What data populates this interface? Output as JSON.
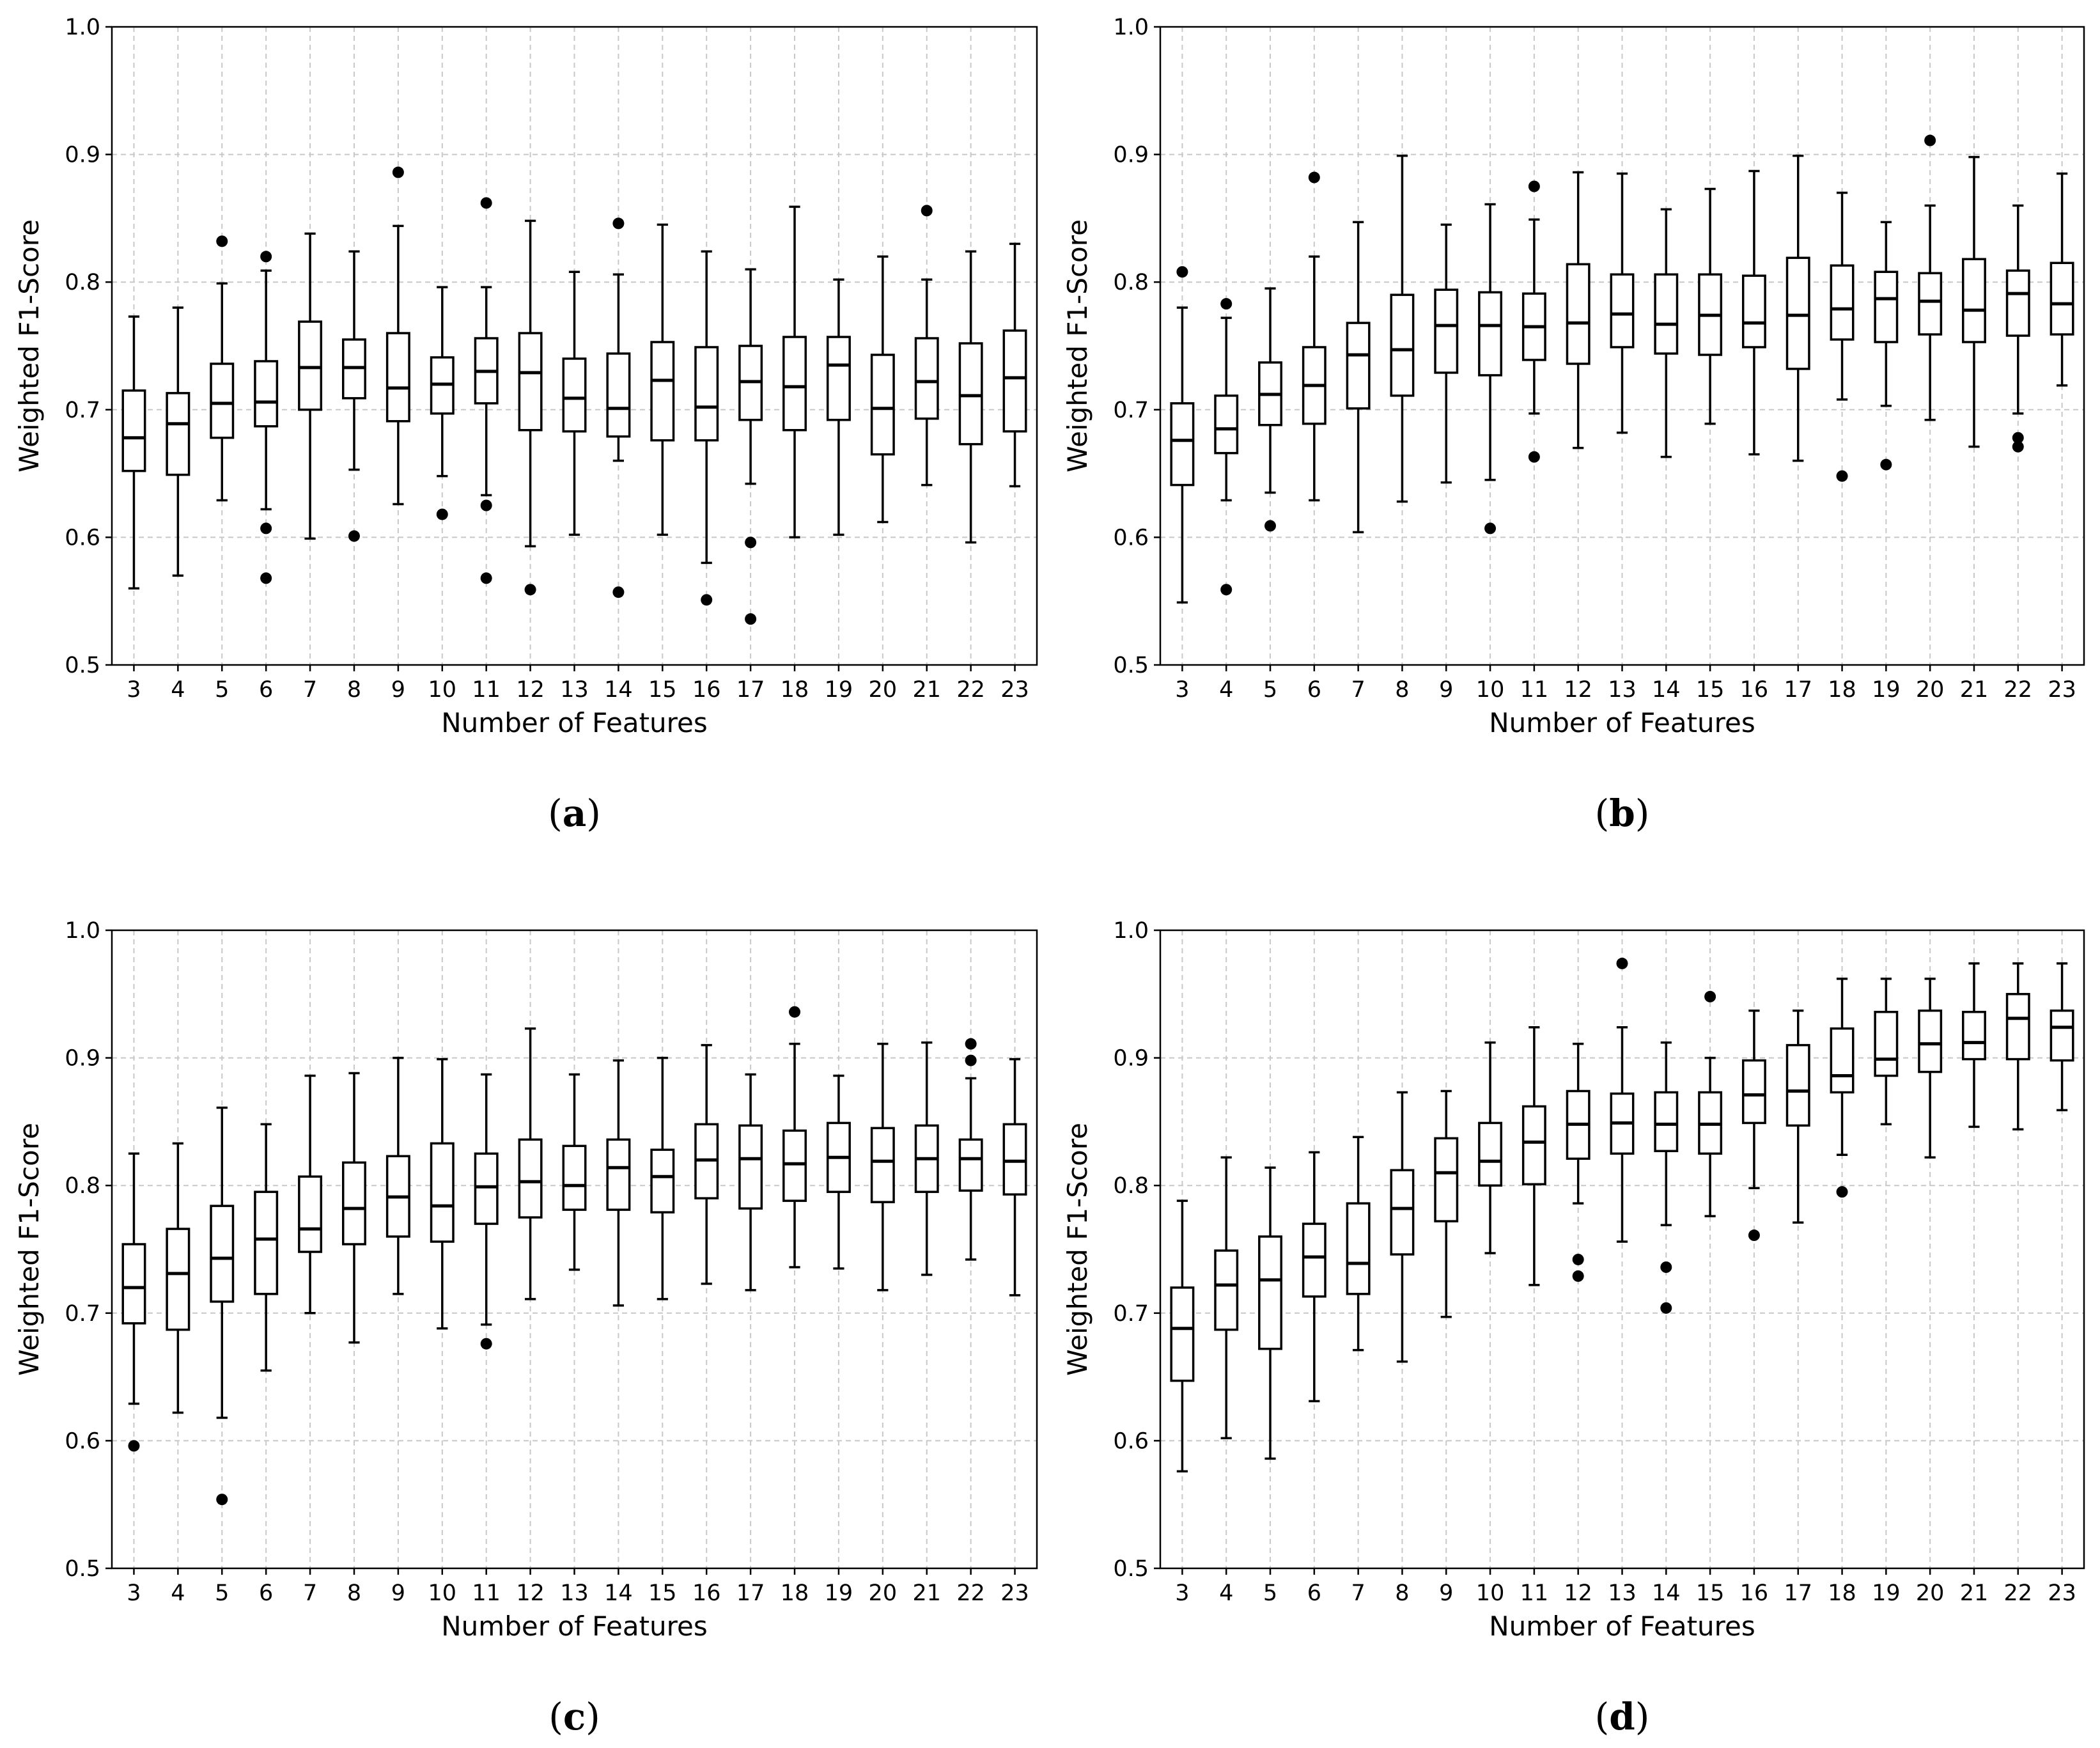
{
  "chart_data": [
    {
      "type": "box",
      "caption": "(a)",
      "xlabel": "Number of Features",
      "ylabel": "Weighted F1-Score",
      "ylim": [
        0.5,
        1.0
      ],
      "yticks": [
        "0.5",
        "0.6",
        "0.7",
        "0.8",
        "0.9",
        "1.0"
      ],
      "grid": true,
      "categories": [
        3,
        4,
        5,
        6,
        7,
        8,
        9,
        10,
        11,
        12,
        13,
        14,
        15,
        16,
        17,
        18,
        19,
        20,
        21,
        22,
        23
      ],
      "boxes": [
        {
          "lo": 0.56,
          "q1": 0.652,
          "med": 0.678,
          "q3": 0.715,
          "hi": 0.773,
          "out": []
        },
        {
          "lo": 0.57,
          "q1": 0.649,
          "med": 0.689,
          "q3": 0.713,
          "hi": 0.78,
          "out": []
        },
        {
          "lo": 0.629,
          "q1": 0.678,
          "med": 0.705,
          "q3": 0.736,
          "hi": 0.799,
          "out": [
            0.832
          ]
        },
        {
          "lo": 0.622,
          "q1": 0.687,
          "med": 0.706,
          "q3": 0.738,
          "hi": 0.809,
          "out": [
            0.82,
            0.607,
            0.568
          ]
        },
        {
          "lo": 0.599,
          "q1": 0.7,
          "med": 0.733,
          "q3": 0.769,
          "hi": 0.838,
          "out": []
        },
        {
          "lo": 0.653,
          "q1": 0.709,
          "med": 0.733,
          "q3": 0.755,
          "hi": 0.824,
          "out": [
            0.601
          ]
        },
        {
          "lo": 0.626,
          "q1": 0.691,
          "med": 0.717,
          "q3": 0.76,
          "hi": 0.844,
          "out": [
            0.886
          ]
        },
        {
          "lo": 0.648,
          "q1": 0.697,
          "med": 0.72,
          "q3": 0.741,
          "hi": 0.796,
          "out": [
            0.618
          ]
        },
        {
          "lo": 0.633,
          "q1": 0.705,
          "med": 0.73,
          "q3": 0.756,
          "hi": 0.796,
          "out": [
            0.862,
            0.625,
            0.568
          ]
        },
        {
          "lo": 0.593,
          "q1": 0.684,
          "med": 0.729,
          "q3": 0.76,
          "hi": 0.848,
          "out": [
            0.559
          ]
        },
        {
          "lo": 0.602,
          "q1": 0.683,
          "med": 0.709,
          "q3": 0.74,
          "hi": 0.808,
          "out": []
        },
        {
          "lo": 0.66,
          "q1": 0.679,
          "med": 0.701,
          "q3": 0.744,
          "hi": 0.806,
          "out": [
            0.846,
            0.557
          ]
        },
        {
          "lo": 0.602,
          "q1": 0.676,
          "med": 0.723,
          "q3": 0.753,
          "hi": 0.845,
          "out": []
        },
        {
          "lo": 0.58,
          "q1": 0.676,
          "med": 0.702,
          "q3": 0.749,
          "hi": 0.824,
          "out": [
            0.551
          ]
        },
        {
          "lo": 0.642,
          "q1": 0.692,
          "med": 0.722,
          "q3": 0.75,
          "hi": 0.81,
          "out": [
            0.596,
            0.536
          ]
        },
        {
          "lo": 0.6,
          "q1": 0.684,
          "med": 0.718,
          "q3": 0.757,
          "hi": 0.859,
          "out": []
        },
        {
          "lo": 0.602,
          "q1": 0.692,
          "med": 0.735,
          "q3": 0.757,
          "hi": 0.802,
          "out": []
        },
        {
          "lo": 0.612,
          "q1": 0.665,
          "med": 0.701,
          "q3": 0.743,
          "hi": 0.82,
          "out": []
        },
        {
          "lo": 0.641,
          "q1": 0.693,
          "med": 0.722,
          "q3": 0.756,
          "hi": 0.802,
          "out": [
            0.856
          ]
        },
        {
          "lo": 0.596,
          "q1": 0.673,
          "med": 0.711,
          "q3": 0.752,
          "hi": 0.824,
          "out": []
        },
        {
          "lo": 0.64,
          "q1": 0.683,
          "med": 0.725,
          "q3": 0.762,
          "hi": 0.83,
          "out": []
        }
      ]
    },
    {
      "type": "box",
      "caption": "(b)",
      "xlabel": "Number of Features",
      "ylabel": "Weighted F1-Score",
      "ylim": [
        0.5,
        1.0
      ],
      "yticks": [
        "0.5",
        "0.6",
        "0.7",
        "0.8",
        "0.9",
        "1.0"
      ],
      "grid": true,
      "categories": [
        3,
        4,
        5,
        6,
        7,
        8,
        9,
        10,
        11,
        12,
        13,
        14,
        15,
        16,
        17,
        18,
        19,
        20,
        21,
        22,
        23
      ],
      "boxes": [
        {
          "lo": 0.549,
          "q1": 0.641,
          "med": 0.676,
          "q3": 0.705,
          "hi": 0.78,
          "out": [
            0.808
          ]
        },
        {
          "lo": 0.629,
          "q1": 0.666,
          "med": 0.685,
          "q3": 0.711,
          "hi": 0.772,
          "out": [
            0.783,
            0.559
          ]
        },
        {
          "lo": 0.635,
          "q1": 0.688,
          "med": 0.712,
          "q3": 0.737,
          "hi": 0.795,
          "out": [
            0.609
          ]
        },
        {
          "lo": 0.629,
          "q1": 0.689,
          "med": 0.719,
          "q3": 0.749,
          "hi": 0.82,
          "out": [
            0.882
          ]
        },
        {
          "lo": 0.604,
          "q1": 0.701,
          "med": 0.743,
          "q3": 0.768,
          "hi": 0.847,
          "out": []
        },
        {
          "lo": 0.628,
          "q1": 0.711,
          "med": 0.747,
          "q3": 0.79,
          "hi": 0.899,
          "out": []
        },
        {
          "lo": 0.643,
          "q1": 0.729,
          "med": 0.766,
          "q3": 0.794,
          "hi": 0.845,
          "out": []
        },
        {
          "lo": 0.645,
          "q1": 0.727,
          "med": 0.766,
          "q3": 0.792,
          "hi": 0.861,
          "out": [
            0.607
          ]
        },
        {
          "lo": 0.697,
          "q1": 0.739,
          "med": 0.765,
          "q3": 0.791,
          "hi": 0.849,
          "out": [
            0.875,
            0.663
          ]
        },
        {
          "lo": 0.67,
          "q1": 0.736,
          "med": 0.768,
          "q3": 0.814,
          "hi": 0.886,
          "out": []
        },
        {
          "lo": 0.682,
          "q1": 0.749,
          "med": 0.775,
          "q3": 0.806,
          "hi": 0.885,
          "out": []
        },
        {
          "lo": 0.663,
          "q1": 0.744,
          "med": 0.767,
          "q3": 0.806,
          "hi": 0.857,
          "out": []
        },
        {
          "lo": 0.689,
          "q1": 0.743,
          "med": 0.774,
          "q3": 0.806,
          "hi": 0.873,
          "out": []
        },
        {
          "lo": 0.665,
          "q1": 0.749,
          "med": 0.768,
          "q3": 0.805,
          "hi": 0.887,
          "out": []
        },
        {
          "lo": 0.66,
          "q1": 0.732,
          "med": 0.774,
          "q3": 0.819,
          "hi": 0.899,
          "out": []
        },
        {
          "lo": 0.708,
          "q1": 0.755,
          "med": 0.779,
          "q3": 0.813,
          "hi": 0.87,
          "out": [
            0.648
          ]
        },
        {
          "lo": 0.703,
          "q1": 0.753,
          "med": 0.787,
          "q3": 0.808,
          "hi": 0.847,
          "out": [
            0.657
          ]
        },
        {
          "lo": 0.692,
          "q1": 0.759,
          "med": 0.785,
          "q3": 0.807,
          "hi": 0.86,
          "out": [
            0.911
          ]
        },
        {
          "lo": 0.671,
          "q1": 0.753,
          "med": 0.778,
          "q3": 0.818,
          "hi": 0.898,
          "out": []
        },
        {
          "lo": 0.697,
          "q1": 0.758,
          "med": 0.791,
          "q3": 0.809,
          "hi": 0.86,
          "out": [
            0.678,
            0.671
          ]
        },
        {
          "lo": 0.719,
          "q1": 0.759,
          "med": 0.783,
          "q3": 0.815,
          "hi": 0.885,
          "out": []
        }
      ]
    },
    {
      "type": "box",
      "caption": "(c)",
      "xlabel": "Number of Features",
      "ylabel": "Weighted F1-Score",
      "ylim": [
        0.5,
        1.0
      ],
      "yticks": [
        "0.5",
        "0.6",
        "0.7",
        "0.8",
        "0.9",
        "1.0"
      ],
      "grid": true,
      "categories": [
        3,
        4,
        5,
        6,
        7,
        8,
        9,
        10,
        11,
        12,
        13,
        14,
        15,
        16,
        17,
        18,
        19,
        20,
        21,
        22,
        23
      ],
      "boxes": [
        {
          "lo": 0.629,
          "q1": 0.692,
          "med": 0.72,
          "q3": 0.754,
          "hi": 0.825,
          "out": [
            0.596
          ]
        },
        {
          "lo": 0.622,
          "q1": 0.687,
          "med": 0.731,
          "q3": 0.766,
          "hi": 0.833,
          "out": []
        },
        {
          "lo": 0.618,
          "q1": 0.709,
          "med": 0.743,
          "q3": 0.784,
          "hi": 0.861,
          "out": [
            0.554
          ]
        },
        {
          "lo": 0.655,
          "q1": 0.715,
          "med": 0.758,
          "q3": 0.795,
          "hi": 0.848,
          "out": []
        },
        {
          "lo": 0.7,
          "q1": 0.748,
          "med": 0.766,
          "q3": 0.807,
          "hi": 0.886,
          "out": []
        },
        {
          "lo": 0.677,
          "q1": 0.754,
          "med": 0.782,
          "q3": 0.818,
          "hi": 0.888,
          "out": []
        },
        {
          "lo": 0.715,
          "q1": 0.76,
          "med": 0.791,
          "q3": 0.823,
          "hi": 0.9,
          "out": []
        },
        {
          "lo": 0.688,
          "q1": 0.756,
          "med": 0.784,
          "q3": 0.833,
          "hi": 0.899,
          "out": []
        },
        {
          "lo": 0.691,
          "q1": 0.77,
          "med": 0.799,
          "q3": 0.825,
          "hi": 0.887,
          "out": [
            0.676
          ]
        },
        {
          "lo": 0.711,
          "q1": 0.775,
          "med": 0.803,
          "q3": 0.836,
          "hi": 0.923,
          "out": []
        },
        {
          "lo": 0.734,
          "q1": 0.781,
          "med": 0.8,
          "q3": 0.831,
          "hi": 0.887,
          "out": []
        },
        {
          "lo": 0.706,
          "q1": 0.781,
          "med": 0.814,
          "q3": 0.836,
          "hi": 0.898,
          "out": []
        },
        {
          "lo": 0.711,
          "q1": 0.779,
          "med": 0.807,
          "q3": 0.828,
          "hi": 0.9,
          "out": []
        },
        {
          "lo": 0.723,
          "q1": 0.79,
          "med": 0.82,
          "q3": 0.848,
          "hi": 0.91,
          "out": []
        },
        {
          "lo": 0.718,
          "q1": 0.782,
          "med": 0.821,
          "q3": 0.847,
          "hi": 0.887,
          "out": []
        },
        {
          "lo": 0.736,
          "q1": 0.788,
          "med": 0.817,
          "q3": 0.843,
          "hi": 0.911,
          "out": [
            0.936
          ]
        },
        {
          "lo": 0.735,
          "q1": 0.795,
          "med": 0.822,
          "q3": 0.849,
          "hi": 0.886,
          "out": []
        },
        {
          "lo": 0.718,
          "q1": 0.787,
          "med": 0.819,
          "q3": 0.845,
          "hi": 0.911,
          "out": []
        },
        {
          "lo": 0.73,
          "q1": 0.795,
          "med": 0.821,
          "q3": 0.847,
          "hi": 0.912,
          "out": []
        },
        {
          "lo": 0.742,
          "q1": 0.796,
          "med": 0.821,
          "q3": 0.836,
          "hi": 0.884,
          "out": [
            0.911,
            0.898
          ]
        },
        {
          "lo": 0.714,
          "q1": 0.793,
          "med": 0.819,
          "q3": 0.848,
          "hi": 0.899,
          "out": []
        }
      ]
    },
    {
      "type": "box",
      "caption": "(d)",
      "xlabel": "Number of Features",
      "ylabel": "Weighted F1-Score",
      "ylim": [
        0.5,
        1.0
      ],
      "yticks": [
        "0.5",
        "0.6",
        "0.7",
        "0.8",
        "0.9",
        "1.0"
      ],
      "grid": true,
      "categories": [
        3,
        4,
        5,
        6,
        7,
        8,
        9,
        10,
        11,
        12,
        13,
        14,
        15,
        16,
        17,
        18,
        19,
        20,
        21,
        22,
        23
      ],
      "boxes": [
        {
          "lo": 0.576,
          "q1": 0.647,
          "med": 0.688,
          "q3": 0.72,
          "hi": 0.788,
          "out": []
        },
        {
          "lo": 0.602,
          "q1": 0.687,
          "med": 0.722,
          "q3": 0.749,
          "hi": 0.822,
          "out": []
        },
        {
          "lo": 0.586,
          "q1": 0.672,
          "med": 0.726,
          "q3": 0.76,
          "hi": 0.814,
          "out": []
        },
        {
          "lo": 0.631,
          "q1": 0.713,
          "med": 0.744,
          "q3": 0.77,
          "hi": 0.826,
          "out": []
        },
        {
          "lo": 0.671,
          "q1": 0.715,
          "med": 0.739,
          "q3": 0.786,
          "hi": 0.838,
          "out": []
        },
        {
          "lo": 0.662,
          "q1": 0.746,
          "med": 0.782,
          "q3": 0.812,
          "hi": 0.873,
          "out": []
        },
        {
          "lo": 0.697,
          "q1": 0.772,
          "med": 0.81,
          "q3": 0.837,
          "hi": 0.874,
          "out": []
        },
        {
          "lo": 0.747,
          "q1": 0.8,
          "med": 0.819,
          "q3": 0.849,
          "hi": 0.912,
          "out": []
        },
        {
          "lo": 0.722,
          "q1": 0.801,
          "med": 0.834,
          "q3": 0.862,
          "hi": 0.924,
          "out": []
        },
        {
          "lo": 0.786,
          "q1": 0.821,
          "med": 0.848,
          "q3": 0.874,
          "hi": 0.911,
          "out": [
            0.742,
            0.729
          ]
        },
        {
          "lo": 0.756,
          "q1": 0.825,
          "med": 0.849,
          "q3": 0.872,
          "hi": 0.924,
          "out": [
            0.974
          ]
        },
        {
          "lo": 0.769,
          "q1": 0.827,
          "med": 0.848,
          "q3": 0.873,
          "hi": 0.912,
          "out": [
            0.736,
            0.704
          ]
        },
        {
          "lo": 0.776,
          "q1": 0.825,
          "med": 0.848,
          "q3": 0.873,
          "hi": 0.9,
          "out": [
            0.948
          ]
        },
        {
          "lo": 0.798,
          "q1": 0.849,
          "med": 0.871,
          "q3": 0.898,
          "hi": 0.937,
          "out": [
            0.761
          ]
        },
        {
          "lo": 0.771,
          "q1": 0.847,
          "med": 0.874,
          "q3": 0.91,
          "hi": 0.937,
          "out": []
        },
        {
          "lo": 0.824,
          "q1": 0.873,
          "med": 0.886,
          "q3": 0.923,
          "hi": 0.962,
          "out": [
            0.795
          ]
        },
        {
          "lo": 0.848,
          "q1": 0.886,
          "med": 0.899,
          "q3": 0.936,
          "hi": 0.962,
          "out": []
        },
        {
          "lo": 0.822,
          "q1": 0.889,
          "med": 0.911,
          "q3": 0.937,
          "hi": 0.962,
          "out": []
        },
        {
          "lo": 0.846,
          "q1": 0.899,
          "med": 0.912,
          "q3": 0.936,
          "hi": 0.974,
          "out": []
        },
        {
          "lo": 0.844,
          "q1": 0.899,
          "med": 0.931,
          "q3": 0.95,
          "hi": 0.974,
          "out": []
        },
        {
          "lo": 0.859,
          "q1": 0.898,
          "med": 0.924,
          "q3": 0.937,
          "hi": 0.974,
          "out": []
        }
      ]
    }
  ]
}
